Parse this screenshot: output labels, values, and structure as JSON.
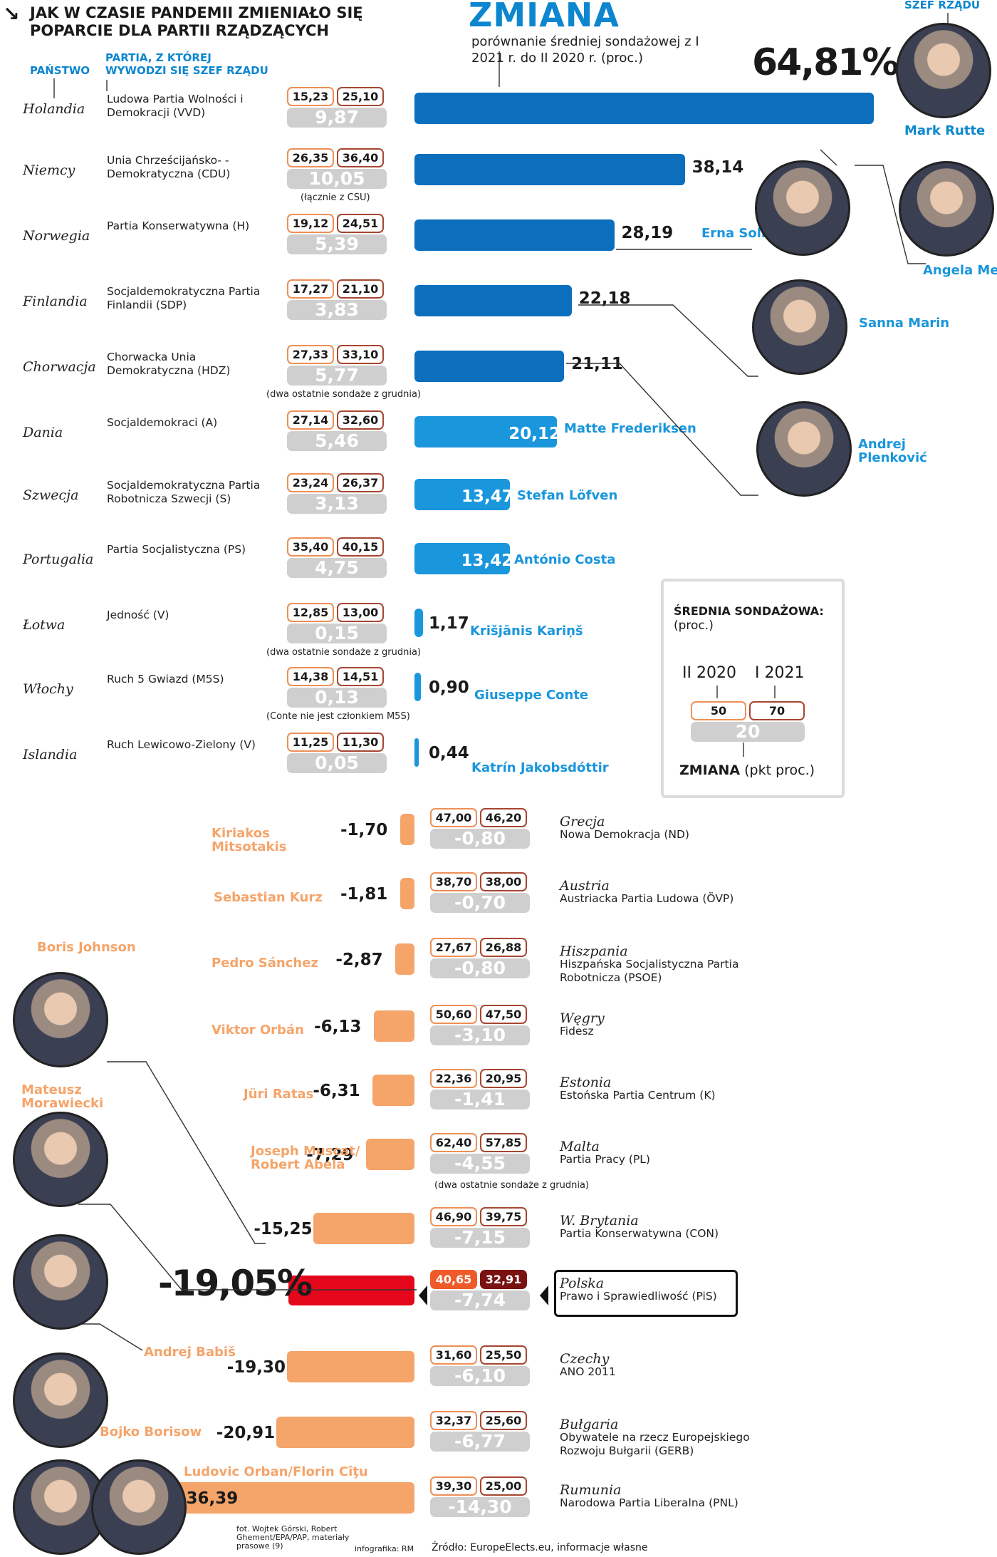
{
  "header": {
    "corner_arrow": "↘",
    "title": "JAK W CZASIE PANDEMII ZMIENIAŁO SIĘ POPARCIE DLA PARTII RZĄDZĄCYCH",
    "big_title": "ZMIANA",
    "subtitle": "porównanie średniej sondażowej z I 2021 r. do II 2020 r. (proc.)",
    "col_country": "PAŃSTWO",
    "col_party": "PARTIA, Z KTÓREJ WYWODZI SIĘ SZEF RZĄDU",
    "col_leader": "SZEF RZĄDU"
  },
  "legend": {
    "title": "ŚREDNIA SONDAŻOWA:",
    "unit": "(proc.)",
    "label_feb": "II 2020",
    "label_jan": "I 2021",
    "feb": "50",
    "jan": "70",
    "delta": "20",
    "footer_bold": "ZMIANA",
    "footer_rest": "(pkt proc.)"
  },
  "chart_data": {
    "type": "bar",
    "title": "JAK W CZASIE PANDEMII ZMIENIAŁO SIĘ POPARCIE DLA PARTII RZĄDZĄCYCH",
    "ylabel": "ZMIANA (proc.)",
    "positive": [
      {
        "country": "Holandia",
        "party": "Ludowa Partia Wolności i Demokracji (VVD)",
        "feb": "15,23",
        "jan": "25,10",
        "delta": "9,87",
        "change": 64.81,
        "label": "64,81%",
        "leader": "Mark Rutte",
        "note": ""
      },
      {
        "country": "Niemcy",
        "party": "Unia Chrześcijańsko- -Demokratyczna (CDU)",
        "feb": "26,35",
        "jan": "36,40",
        "delta": "10,05",
        "change": 38.14,
        "label": "38,14",
        "leader": "Angela Merkel",
        "note": "(łącznie z CSU)"
      },
      {
        "country": "Norwegia",
        "party": "Partia Konserwatywna (H)",
        "feb": "19,12",
        "jan": "24,51",
        "delta": "5,39",
        "change": 28.19,
        "label": "28,19",
        "leader": "Erna Solberg",
        "note": ""
      },
      {
        "country": "Finlandia",
        "party": "Socjaldemokratyczna Partia Finlandii (SDP)",
        "feb": "17,27",
        "jan": "21,10",
        "delta": "3,83",
        "change": 22.18,
        "label": "22,18",
        "leader": "Sanna Marin",
        "note": ""
      },
      {
        "country": "Chorwacja",
        "party": "Chorwacka Unia Demokratyczna (HDZ)",
        "feb": "27,33",
        "jan": "33,10",
        "delta": "5,77",
        "change": 21.11,
        "label": "21,11",
        "leader": "Andrej Plenković",
        "note": "(dwa ostatnie sondaże z grudnia)"
      },
      {
        "country": "Dania",
        "party": "Socjaldemokraci (A)",
        "feb": "27,14",
        "jan": "32,60",
        "delta": "5,46",
        "change": 20.12,
        "label": "20,12",
        "leader": "Matte Frederiksen",
        "note": ""
      },
      {
        "country": "Szwecja",
        "party": "Socjaldemokratyczna Partia Robotnicza Szwecji (S)",
        "feb": "23,24",
        "jan": "26,37",
        "delta": "3,13",
        "change": 13.47,
        "label": "13,47",
        "leader": "Stefan Löfven",
        "note": ""
      },
      {
        "country": "Portugalia",
        "party": "Partia Socjalistyczna (PS)",
        "feb": "35,40",
        "jan": "40,15",
        "delta": "4,75",
        "change": 13.42,
        "label": "13,42",
        "leader": "António Costa",
        "note": ""
      },
      {
        "country": "Łotwa",
        "party": "Jedność (V)",
        "feb": "12,85",
        "jan": "13,00",
        "delta": "0,15",
        "change": 1.17,
        "label": "1,17",
        "leader": "Krišjānis Kariņš",
        "note": "(dwa ostatnie sondaże z grudnia)"
      },
      {
        "country": "Włochy",
        "party": "Ruch 5 Gwiazd (M5S)",
        "feb": "14,38",
        "jan": "14,51",
        "delta": "0,13",
        "change": 0.9,
        "label": "0,90",
        "leader": "Giuseppe Conte",
        "note": "(Conte nie jest członkiem M5S)"
      },
      {
        "country": "Islandia",
        "party": "Ruch Lewicowo-Zielony (V)",
        "feb": "11,25",
        "jan": "11,30",
        "delta": "0,05",
        "change": 0.44,
        "label": "0,44",
        "leader": "Katrín Jakobsdóttir",
        "note": ""
      }
    ],
    "negative": [
      {
        "country": "Grecja",
        "party": "Nowa Demokracja (ND)",
        "feb": "47,00",
        "jan": "46,20",
        "delta": "-0,80",
        "change": -1.7,
        "label": "-1,70",
        "leader": "Kiriakos Mitsotakis",
        "note": ""
      },
      {
        "country": "Austria",
        "party": "Austriacka Partia Ludowa (ÖVP)",
        "feb": "38,70",
        "jan": "38,00",
        "delta": "-0,70",
        "change": -1.81,
        "label": "-1,81",
        "leader": "Sebastian Kurz",
        "note": ""
      },
      {
        "country": "Hiszpania",
        "party": "Hiszpańska Socjalistyczna Partia Robotnicza (PSOE)",
        "feb": "27,67",
        "jan": "26,88",
        "delta": "-0,80",
        "change": -2.87,
        "label": "-2,87",
        "leader": "Pedro Sánchez",
        "note": ""
      },
      {
        "country": "Węgry",
        "party": "Fidesz",
        "feb": "50,60",
        "jan": "47,50",
        "delta": "-3,10",
        "change": -6.13,
        "label": "-6,13",
        "leader": "Viktor Orbán",
        "note": ""
      },
      {
        "country": "Estonia",
        "party": "Estońska Partia Centrum (K)",
        "feb": "22,36",
        "jan": "20,95",
        "delta": "-1,41",
        "change": -6.31,
        "label": "-6,31",
        "leader": "Jüri Ratas",
        "note": ""
      },
      {
        "country": "Malta",
        "party": "Partia Pracy (PL)",
        "feb": "62,40",
        "jan": "57,85",
        "delta": "-4,55",
        "change": -7.29,
        "label": "-7,29",
        "leader": "Joseph Muscat/ Robert Abela",
        "note": "(dwa ostatnie sondaże z grudnia)"
      },
      {
        "country": "W. Brytania",
        "party": "Partia Konserwatywna (CON)",
        "feb": "46,90",
        "jan": "39,75",
        "delta": "-7,15",
        "change": -15.25,
        "label": "-15,25",
        "leader": "Boris Johnson",
        "note": ""
      },
      {
        "country": "Polska",
        "party": "Prawo i Sprawiedliwość (PiS)",
        "feb": "40,65",
        "jan": "32,91",
        "delta": "-7,74",
        "change": -19.05,
        "label": "-19,05%",
        "leader": "Mateusz Morawiecki",
        "note": ""
      },
      {
        "country": "Czechy",
        "party": "ANO 2011",
        "feb": "31,60",
        "jan": "25,50",
        "delta": "-6,10",
        "change": -19.3,
        "label": "-19,30",
        "leader": "Andrej Babiš",
        "note": ""
      },
      {
        "country": "Bułgaria",
        "party": "Obywatele na rzecz Europejskiego Rozwoju Bułgarii (GERB)",
        "feb": "32,37",
        "jan": "25,60",
        "delta": "-6,77",
        "change": -20.91,
        "label": "-20,91",
        "leader": "Bojko Borisow",
        "note": ""
      },
      {
        "country": "Rumunia",
        "party": "Narodowa Partia Liberalna (PNL)",
        "feb": "39,30",
        "jan": "25,00",
        "delta": "-14,30",
        "change": -36.39,
        "label": "-36,39",
        "leader": "Ludovic Orban/Florin Cîţu",
        "note": ""
      }
    ]
  },
  "footer": {
    "photo": "fot. Wojtek Górski, Robert Ghement/EPA/PAP, materiały prasowe (9)",
    "graphic": "infografika: RM",
    "source": "Źródło: EuropeElects.eu, informacje własne"
  }
}
